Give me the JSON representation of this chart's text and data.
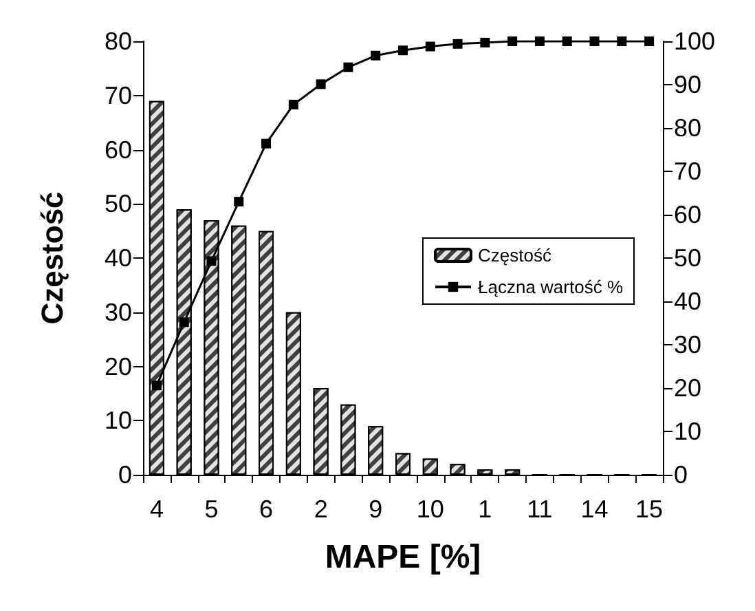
{
  "chart_data": {
    "type": "bar",
    "xlabel": "MAPE [%]",
    "ylabel": "Częstość",
    "categories": [
      "4",
      null,
      "5",
      null,
      "6",
      null,
      "2",
      null,
      "9",
      null,
      "10",
      null,
      "1",
      null,
      "11",
      null,
      "14",
      null,
      "15"
    ],
    "series": [
      {
        "name": "Częstość",
        "color": "#404040",
        "values": [
          69,
          49,
          47,
          46,
          45,
          30,
          16,
          13,
          9,
          4,
          3,
          2,
          1,
          1,
          0,
          0,
          0,
          0,
          0
        ]
      },
      {
        "name": "Łączna wartość %",
        "type": "line",
        "axis": "y2",
        "color": "#000000",
        "values": [
          20.6,
          35.2,
          49.3,
          63.0,
          76.4,
          85.4,
          90.1,
          94.0,
          96.7,
          97.9,
          98.8,
          99.4,
          99.7,
          100,
          100,
          100,
          100,
          100,
          100
        ]
      }
    ],
    "ylim": [
      0,
      80
    ],
    "yticks": [
      0,
      10,
      20,
      30,
      40,
      50,
      60,
      70,
      80
    ],
    "y2lim": [
      0,
      100
    ],
    "y2ticks": [
      0,
      10,
      20,
      30,
      40,
      50,
      60,
      70,
      80,
      90,
      100
    ],
    "grid": false,
    "legend": "right",
    "marker": "square",
    "line_style": "solid"
  }
}
